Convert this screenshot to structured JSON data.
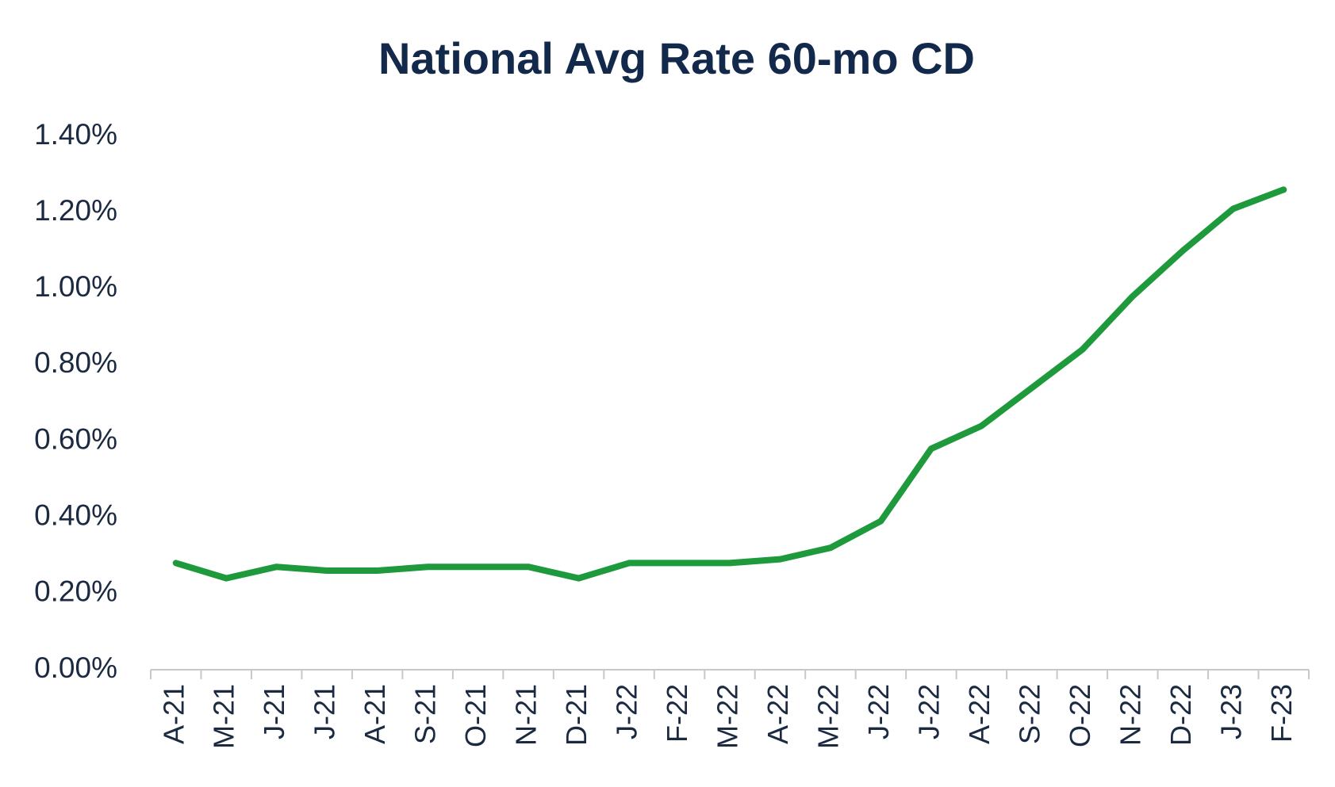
{
  "chart_data": {
    "type": "line",
    "title": "National Avg Rate 60-mo CD",
    "categories": [
      "A-21",
      "M-21",
      "J-21",
      "J-21",
      "A-21",
      "S-21",
      "O-21",
      "N-21",
      "D-21",
      "J-22",
      "F-22",
      "M-22",
      "A-22",
      "M-22",
      "J-22",
      "J-22",
      "A-22",
      "S-22",
      "O-22",
      "N-22",
      "D-22",
      "J-23",
      "F-23"
    ],
    "series": [
      {
        "color": "#1e9a3c",
        "values": [
          0.28,
          0.24,
          0.27,
          0.26,
          0.26,
          0.27,
          0.27,
          0.27,
          0.24,
          0.28,
          0.28,
          0.28,
          0.29,
          0.32,
          0.39,
          0.58,
          0.64,
          0.74,
          0.84,
          0.98,
          1.1,
          1.21,
          1.26
        ]
      }
    ],
    "ylim": [
      0,
      1.4
    ],
    "yticks": [
      {
        "value": 0,
        "label": "0.00%"
      },
      {
        "value": 0.2,
        "label": "0.20%"
      },
      {
        "value": 0.4,
        "label": "0.40%"
      },
      {
        "value": 0.6,
        "label": "0.60%"
      },
      {
        "value": 0.8,
        "label": "0.80%"
      },
      {
        "value": 1.0,
        "label": "1.00%"
      },
      {
        "value": 1.2,
        "label": "1.20%"
      },
      {
        "value": 1.4,
        "label": "1.40%"
      }
    ],
    "grid": false
  }
}
